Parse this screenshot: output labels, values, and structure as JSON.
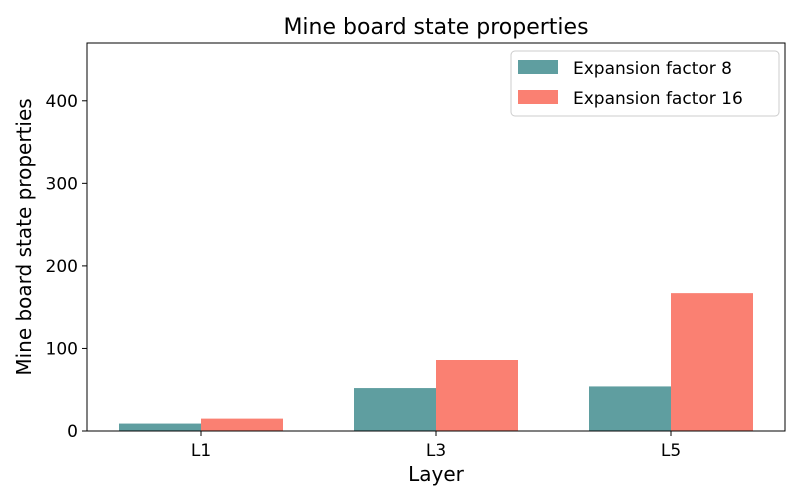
{
  "chart_data": {
    "type": "bar",
    "title": "Mine board state properties",
    "xlabel": "Layer",
    "ylabel": "Mine board state properties",
    "categories": [
      "L1",
      "L3",
      "L5"
    ],
    "series": [
      {
        "name": "Expansion factor 8",
        "color": "#5f9ea0",
        "values": [
          9,
          52,
          54
        ]
      },
      {
        "name": "Expansion factor 16",
        "color": "#fa8072",
        "values": [
          15,
          86,
          167
        ]
      }
    ],
    "ylim": [
      0,
      470
    ],
    "yticks": [
      0,
      100,
      200,
      300,
      400
    ],
    "grid": false,
    "legend": "top-right"
  }
}
